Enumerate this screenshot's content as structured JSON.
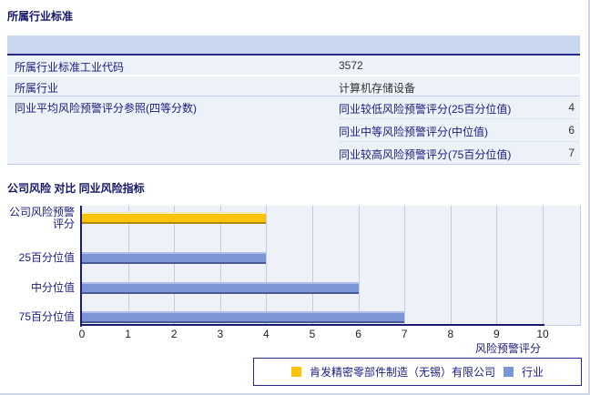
{
  "sections": {
    "industry_title": "所属行业标准",
    "comparison_title": "公司风险 对比 同业风险指标"
  },
  "industry_table": {
    "rows": [
      {
        "label": "所属行业标准工业代码",
        "value": "3572"
      },
      {
        "label": "所属行业",
        "value": "计算机存储设备"
      }
    ],
    "reference_row": {
      "label": "同业平均风险预警评分参照(四等分数)",
      "items": [
        {
          "label": "同业较低风险预警评分(25百分位值)",
          "value": "4"
        },
        {
          "label": "同业中等风险预警评分(中位值)",
          "value": "6"
        },
        {
          "label": "同业较高风险预警评分(75百分位值)",
          "value": "7"
        }
      ]
    }
  },
  "chart_data": {
    "type": "bar",
    "orientation": "horizontal",
    "title": "",
    "categories": [
      "公司风险预警评分",
      "25百分位值",
      "中分位值",
      "75百分位值"
    ],
    "series": [
      {
        "name": "肯发精密零部件制造（无锡）有限公司",
        "color": "#fcc30b",
        "values": [
          4,
          null,
          null,
          null
        ]
      },
      {
        "name": "行业",
        "color": "#7b95d6",
        "values": [
          null,
          4,
          6,
          7
        ]
      }
    ],
    "xlabel": "风险预警评分",
    "ylabel": "",
    "xlim": [
      0,
      10
    ],
    "ticks": [
      0,
      1,
      2,
      3,
      4,
      5,
      6,
      7,
      8,
      9,
      10
    ],
    "grid": true,
    "legend_position": "bottom"
  },
  "colors": {
    "heading": "#16166b",
    "table_header_band": "#c8d6ee",
    "row_bg": "#edf1f8",
    "company_bar": "#fcc30b",
    "industry_bar": "#7b95d6",
    "axis": "#1a1a6e"
  }
}
